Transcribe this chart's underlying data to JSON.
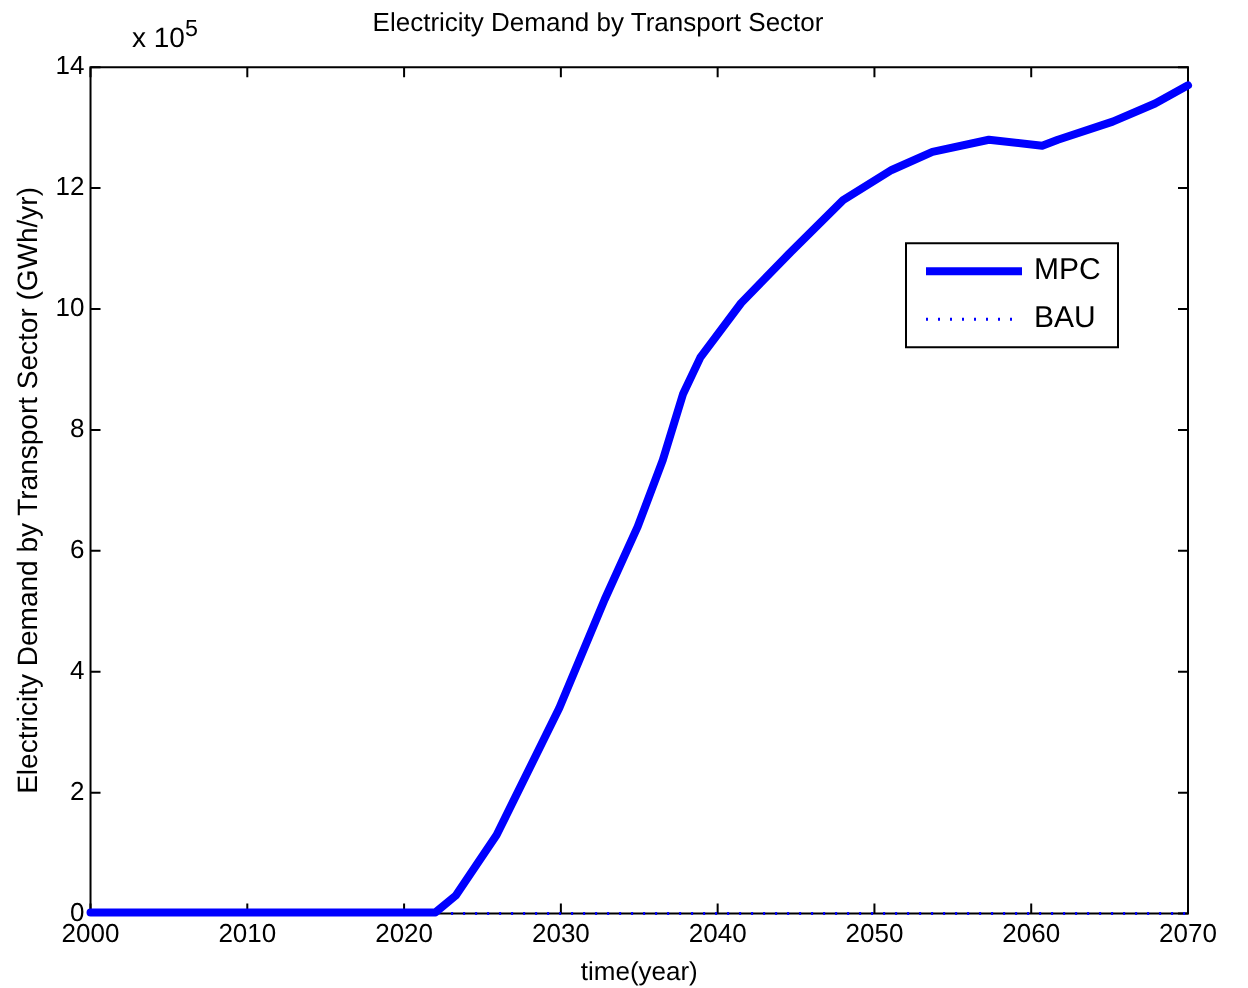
{
  "chart_data": {
    "type": "line",
    "title": "Electricity Demand by Transport Sector",
    "xlabel": "time(year)",
    "ylabel": "Electricity Demand by Transport Sector (GWh/yr)",
    "annotations": [
      "x 10$^{5}$"
    ],
    "xlim": [
      2000,
      2070
    ],
    "xticks": [
      2000,
      2010,
      2020,
      2030,
      2040,
      2050,
      2060,
      2070
    ],
    "ylim": [
      0,
      14
    ],
    "yticks": [
      0,
      2,
      4,
      6,
      8,
      10,
      12,
      14
    ],
    "grid": false,
    "legend": "right",
    "marker": "none",
    "series": [
      {
        "name": "MPC",
        "color": "#0000ff",
        "line_style": "solid",
        "x": [
          2000,
          2010,
          2022,
          2023.3,
          2025.9,
          2029.9,
          2032.8,
          2034.9,
          2036.5,
          2037.8,
          2038.9,
          2041.5,
          2044.5,
          2048,
          2051.1,
          2053.7,
          2057.3,
          2060.7,
          2061.7,
          2065.2,
          2067.9,
          2070
        ],
        "values": [
          0.02,
          0.02,
          0.02,
          0.3,
          1.3,
          3.4,
          5.2,
          6.4,
          7.5,
          8.6,
          9.2,
          10.1,
          10.9,
          11.8,
          12.3,
          12.6,
          12.8,
          12.7,
          12.8,
          13.1,
          13.4,
          13.7
        ]
      },
      {
        "name": "BAU",
        "color": "#0000ff",
        "line_style": "dotted",
        "x": [
          2023,
          2070
        ],
        "values": [
          0,
          0
        ]
      }
    ]
  }
}
